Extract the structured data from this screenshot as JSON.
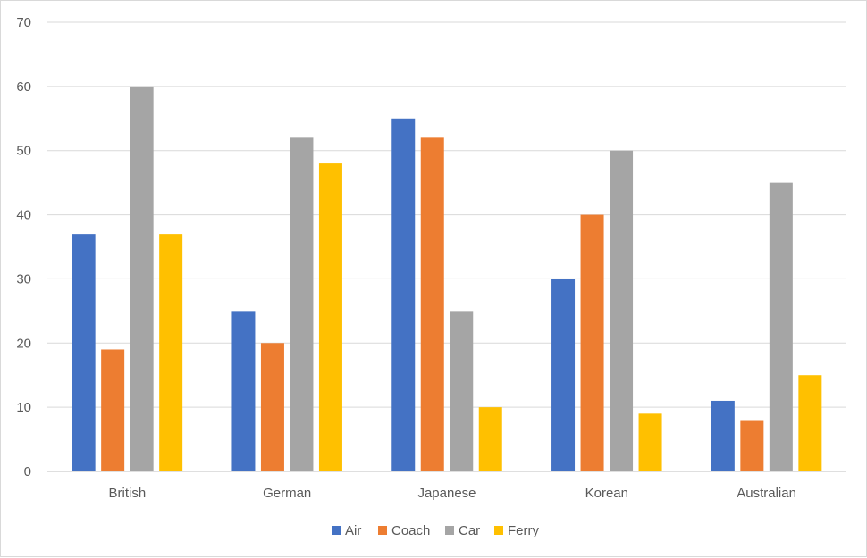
{
  "chart_data": {
    "type": "bar",
    "title": "",
    "xlabel": "",
    "ylabel": "",
    "categories": [
      "British",
      "German",
      "Japanese",
      "Korean",
      "Australian"
    ],
    "series": [
      {
        "name": "Air",
        "color": "#4472c4",
        "values": [
          37,
          25,
          55,
          30,
          11
        ]
      },
      {
        "name": "Coach",
        "color": "#ed7d31",
        "values": [
          19,
          20,
          52,
          40,
          8
        ]
      },
      {
        "name": "Car",
        "color": "#a5a5a5",
        "values": [
          60,
          52,
          25,
          50,
          45
        ]
      },
      {
        "name": "Ferry",
        "color": "#ffc000",
        "values": [
          37,
          48,
          10,
          9,
          15
        ]
      }
    ],
    "ylim": [
      0,
      70
    ],
    "yticks": [
      "0",
      "10",
      "20",
      "30",
      "40",
      "50",
      "60",
      "70"
    ],
    "grid": true,
    "legend_position": "bottom-center"
  }
}
